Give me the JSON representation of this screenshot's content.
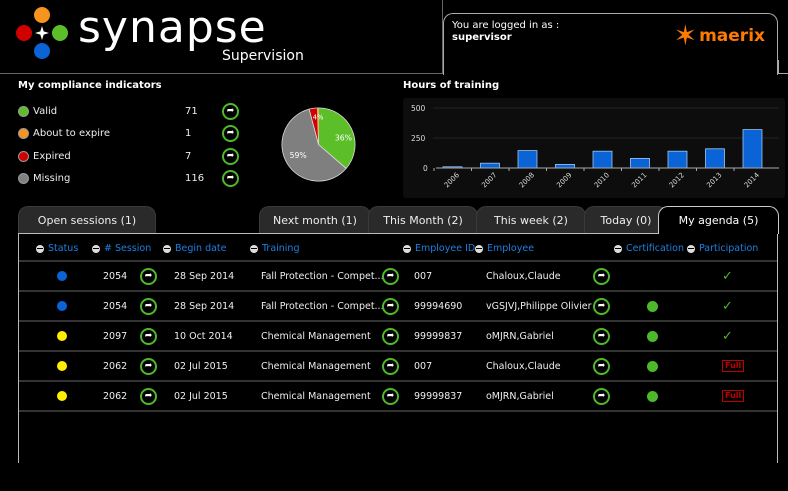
{
  "header": {
    "brand_name": "synapse",
    "brand_subtitle": "Supervision",
    "login_label": "You are logged in as :",
    "login_user": "supervisor",
    "partner_logo_text": "maerix",
    "colors": {
      "orange": "#f7941d",
      "red": "#d00000",
      "green": "#5cbf2a",
      "blue": "#0a64d6",
      "partner": "#ff7a00"
    }
  },
  "compliance": {
    "title": "My compliance indicators",
    "items": [
      {
        "label": "Valid",
        "count": "71",
        "color": "#5cbf2a",
        "icon": "arrow-right-icon"
      },
      {
        "label": "About to expire",
        "count": "1",
        "color": "#f7941d",
        "icon": "arrow-right-icon"
      },
      {
        "label": "Expired",
        "count": "7",
        "color": "#d00000",
        "icon": "arrow-right-icon"
      },
      {
        "label": "Missing",
        "count": "116",
        "color": "#808080",
        "icon": "arrow-right-icon"
      }
    ]
  },
  "chart_data": [
    {
      "type": "pie",
      "title": "My compliance indicators",
      "categories": [
        "Valid",
        "About to expire",
        "Expired",
        "Missing"
      ],
      "values": [
        71,
        1,
        7,
        116
      ],
      "labels": [
        "36%",
        "",
        "4%",
        "59%"
      ],
      "colors": [
        "#5cbf2a",
        "#f7941d",
        "#d00000",
        "#808080"
      ]
    },
    {
      "type": "bar",
      "title": "Hours of training",
      "categories": [
        "2006",
        "2007",
        "2008",
        "2009",
        "2010",
        "2011",
        "2012",
        "2013",
        "2014"
      ],
      "values": [
        10,
        40,
        145,
        30,
        140,
        80,
        140,
        160,
        320
      ],
      "xlabel": "",
      "ylabel": "",
      "ylim": [
        0,
        500
      ],
      "yticks": [
        0,
        250,
        500
      ],
      "bar_color": "#0a64d6",
      "grid": true
    }
  ],
  "training_chart": {
    "title": "Hours of training",
    "yticks": [
      "0",
      "250",
      "500"
    ]
  },
  "tabs": {
    "left": [
      {
        "label": "Open sessions (1)"
      }
    ],
    "right": [
      {
        "label": "Next month (1)"
      },
      {
        "label": "This Month (2)"
      },
      {
        "label": "This week (2)"
      },
      {
        "label": "Today (0)"
      },
      {
        "label": "My agenda (5)",
        "active": true
      }
    ]
  },
  "table": {
    "columns": [
      "Status",
      "# Session",
      "Begin date",
      "Training",
      "Employee ID",
      "Employee",
      "Certification",
      "Participation"
    ],
    "rows": [
      {
        "status_color": "#0a64d6",
        "session": "2054",
        "begin_date": "28 Sep 2014",
        "training": "Fall Protection - Compet...",
        "employee_id": "007",
        "employee": "Chaloux,Claude",
        "certification": false,
        "participation": "check"
      },
      {
        "status_color": "#0a64d6",
        "session": "2054",
        "begin_date": "28 Sep 2014",
        "training": "Fall Protection - Compet...",
        "employee_id": "99994690",
        "employee": "vGSJVJ,Philippe Olivier",
        "certification": true,
        "participation": "check"
      },
      {
        "status_color": "#ffee00",
        "session": "2097",
        "begin_date": "10 Oct 2014",
        "training": "Chemical Management",
        "employee_id": "99999837",
        "employee": "oMJRN,Gabriel",
        "certification": true,
        "participation": "check"
      },
      {
        "status_color": "#ffee00",
        "session": "2062",
        "begin_date": "02 Jul 2015",
        "training": "Chemical Management",
        "employee_id": "007",
        "employee": "Chaloux,Claude",
        "certification": true,
        "participation": "Full"
      },
      {
        "status_color": "#ffee00",
        "session": "2062",
        "begin_date": "02 Jul 2015",
        "training": "Chemical Management",
        "employee_id": "99999837",
        "employee": "oMJRN,Gabriel",
        "certification": true,
        "participation": "Full"
      }
    ],
    "check_glyph": "✓"
  }
}
